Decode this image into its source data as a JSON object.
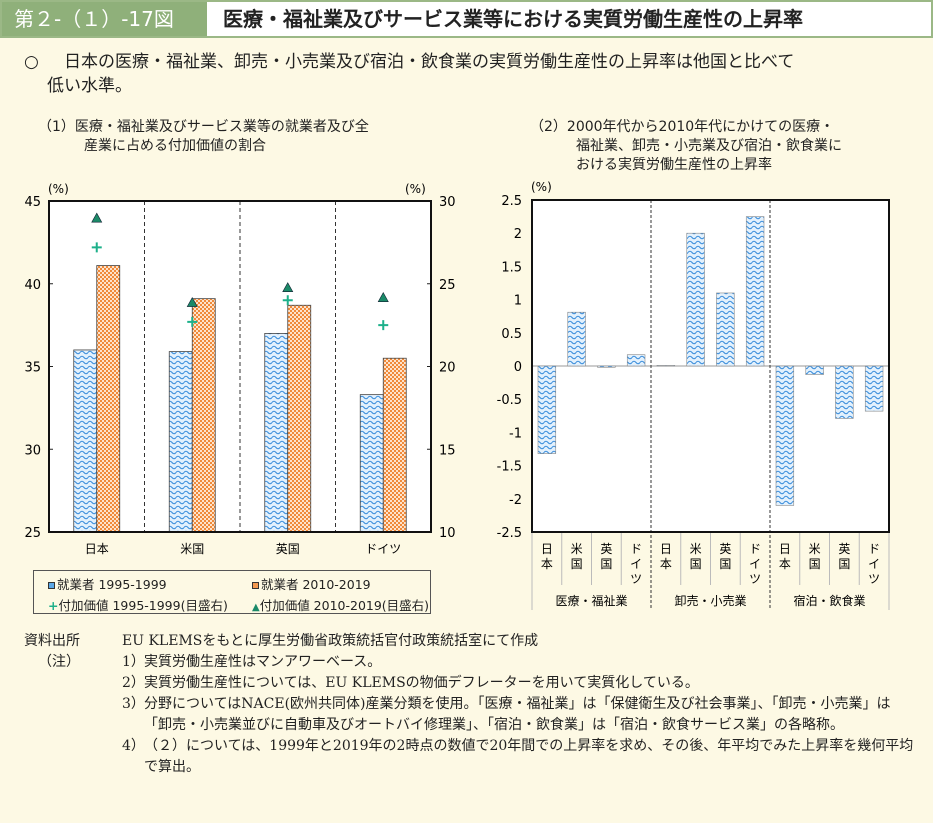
{
  "header": {
    "figure_number": "第２-（１）-17図",
    "title": "医療・福祉業及びサービス業等における実質労働生産性の上昇率"
  },
  "lead": {
    "bullet": "○",
    "line1": "日本の医療・福祉業、卸売・小売業及び宿泊・飲食業の実質労働生産性の上昇率は他国と比べて",
    "line2": "低い水準。"
  },
  "subtitles": {
    "left_1": "（1）医療・福祉業及びサービス業等の就業者及び全",
    "left_2": "産業に占める付加価値の割合",
    "right_1": "（2）2000年代から2010年代にかけての医療・",
    "right_2": "福祉業、卸売・小売業及び宿泊・飲食業に",
    "right_3": "おける実質労働生産性の上昇率"
  },
  "chart_data": [
    {
      "type": "bar",
      "title": "医療・福祉業及びサービス業等の就業者及び全産業に占める付加価値の割合",
      "ylabel": "(%)",
      "y2label": "(%)",
      "ylim": [
        25,
        45
      ],
      "y2lim": [
        10,
        30
      ],
      "yticks": [
        "45",
        "40",
        "35",
        "30",
        "25"
      ],
      "y2ticks": [
        "30",
        "25",
        "20",
        "15",
        "10"
      ],
      "categories": [
        "日本",
        "米国",
        "英国",
        "ドイツ"
      ],
      "series": [
        {
          "name": "就業者 1995-1999",
          "axis": "left",
          "kind": "bar",
          "color": "#5aa6e6",
          "values": [
            36.0,
            35.9,
            37.0,
            33.3
          ]
        },
        {
          "name": "就業者 2010-2019",
          "axis": "left",
          "kind": "bar",
          "color": "#f3994f",
          "values": [
            41.1,
            39.1,
            38.7,
            35.5
          ]
        },
        {
          "name": "付加価値 1995-1999(目盛右)",
          "axis": "right",
          "kind": "plus",
          "color": "#1db08a",
          "values": [
            27.2,
            22.7,
            24.0,
            22.5
          ]
        },
        {
          "name": "付加価値 2010-2019(目盛右)",
          "axis": "right",
          "kind": "triangle",
          "color": "#1b8a68",
          "values": [
            28.9,
            23.8,
            24.7,
            24.1
          ]
        }
      ],
      "legend": "bottom"
    },
    {
      "type": "bar",
      "title": "2000年代から2010年代にかけての医療・福祉業、卸売・小売業及び宿泊・飲食業における実質労働生産性の上昇率",
      "ylabel": "(%)",
      "ylim": [
        -2.5,
        2.5
      ],
      "yticks": [
        "2.5",
        "2",
        "1.5",
        "1",
        "0.5",
        "0",
        "-0.5",
        "-1",
        "-1.5",
        "-2",
        "-2.5"
      ],
      "groups": [
        {
          "name": "医療・福祉業",
          "categories": [
            "日本",
            "米国",
            "英国",
            "ドイツ"
          ],
          "values": [
            -1.32,
            0.81,
            -0.02,
            0.17
          ]
        },
        {
          "name": "卸売・小売業",
          "categories": [
            "日本",
            "米国",
            "英国",
            "ドイツ"
          ],
          "values": [
            0.01,
            2.0,
            1.1,
            2.25
          ]
        },
        {
          "name": "宿泊・飲食業",
          "categories": [
            "日本",
            "米国",
            "英国",
            "ドイツ"
          ],
          "values": [
            -2.1,
            -0.13,
            -0.79,
            -0.68
          ]
        }
      ]
    }
  ],
  "notes": {
    "source_label": "資料出所",
    "source_text": "EU KLEMSをもとに厚生労働省政策統括官付政策統括室にて作成",
    "note_label": "（注）",
    "items": [
      {
        "n": "1）",
        "text": "実質労働生産性はマンアワーベース。"
      },
      {
        "n": "2）",
        "text": "実質労働生産性については、EU KLEMSの物価デフレーターを用いて実質化している。"
      },
      {
        "n": "3）",
        "text": "分野についてはNACE(欧州共同体)産業分類を使用。「医療・福祉業」は「保健衛生及び社会事業」、「卸売・小売業」は「卸売・小売業並びに自動車及びオートバイ修理業」、「宿泊・飲食業」は「宿泊・飲食サービス業」の各略称。"
      },
      {
        "n": "4）",
        "text": "（２）については、1999年と2019年の2時点の数値で20年間での上昇率を求め、その後、年平均でみた上昇率を幾何平均で算出。"
      }
    ]
  }
}
